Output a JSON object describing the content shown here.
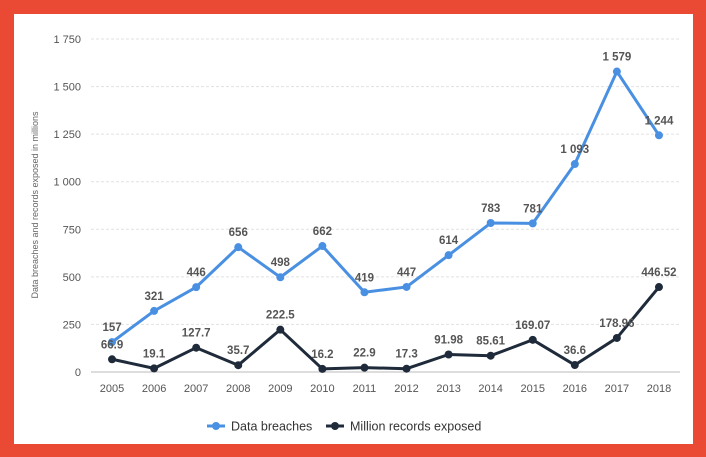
{
  "chart_data": {
    "type": "line",
    "title": "",
    "xlabel": "",
    "ylabel": "Data breaches and records exposed in millions",
    "ylim": [
      0,
      1750
    ],
    "yticks": [
      0,
      250,
      500,
      750,
      1000,
      1250,
      1500,
      1750
    ],
    "ytick_labels": [
      "0",
      "250",
      "500",
      "750",
      "1 000",
      "1 250",
      "1 500",
      "1 750"
    ],
    "grid": true,
    "legend_position": "bottom-center",
    "categories": [
      "2005",
      "2006",
      "2007",
      "2008",
      "2009",
      "2010",
      "2011",
      "2012",
      "2013",
      "2014",
      "2015",
      "2016",
      "2017",
      "2018"
    ],
    "series": [
      {
        "name": "Data breaches",
        "color": "#4a90e2",
        "values": [
          157,
          321,
          446,
          656,
          498,
          662,
          419,
          447,
          614,
          783,
          781,
          1093,
          1579,
          1244
        ],
        "labels": [
          "157",
          "321",
          "446",
          "656",
          "498",
          "662",
          "419",
          "447",
          "614",
          "783",
          "781",
          "1 093",
          "1 579",
          "1 244"
        ]
      },
      {
        "name": "Million records exposed",
        "color": "#1f2b3a",
        "values": [
          66.9,
          19.1,
          127.7,
          35.7,
          222.5,
          16.2,
          22.9,
          17.3,
          91.98,
          85.61,
          169.07,
          36.6,
          178.96,
          446.52
        ],
        "labels": [
          "66.9",
          "19.1",
          "127.7",
          "35.7",
          "222.5",
          "16.2",
          "22.9",
          "17.3",
          "91.98",
          "85.61",
          "169.07",
          "36.6",
          "178.96",
          "446.52"
        ]
      }
    ]
  }
}
